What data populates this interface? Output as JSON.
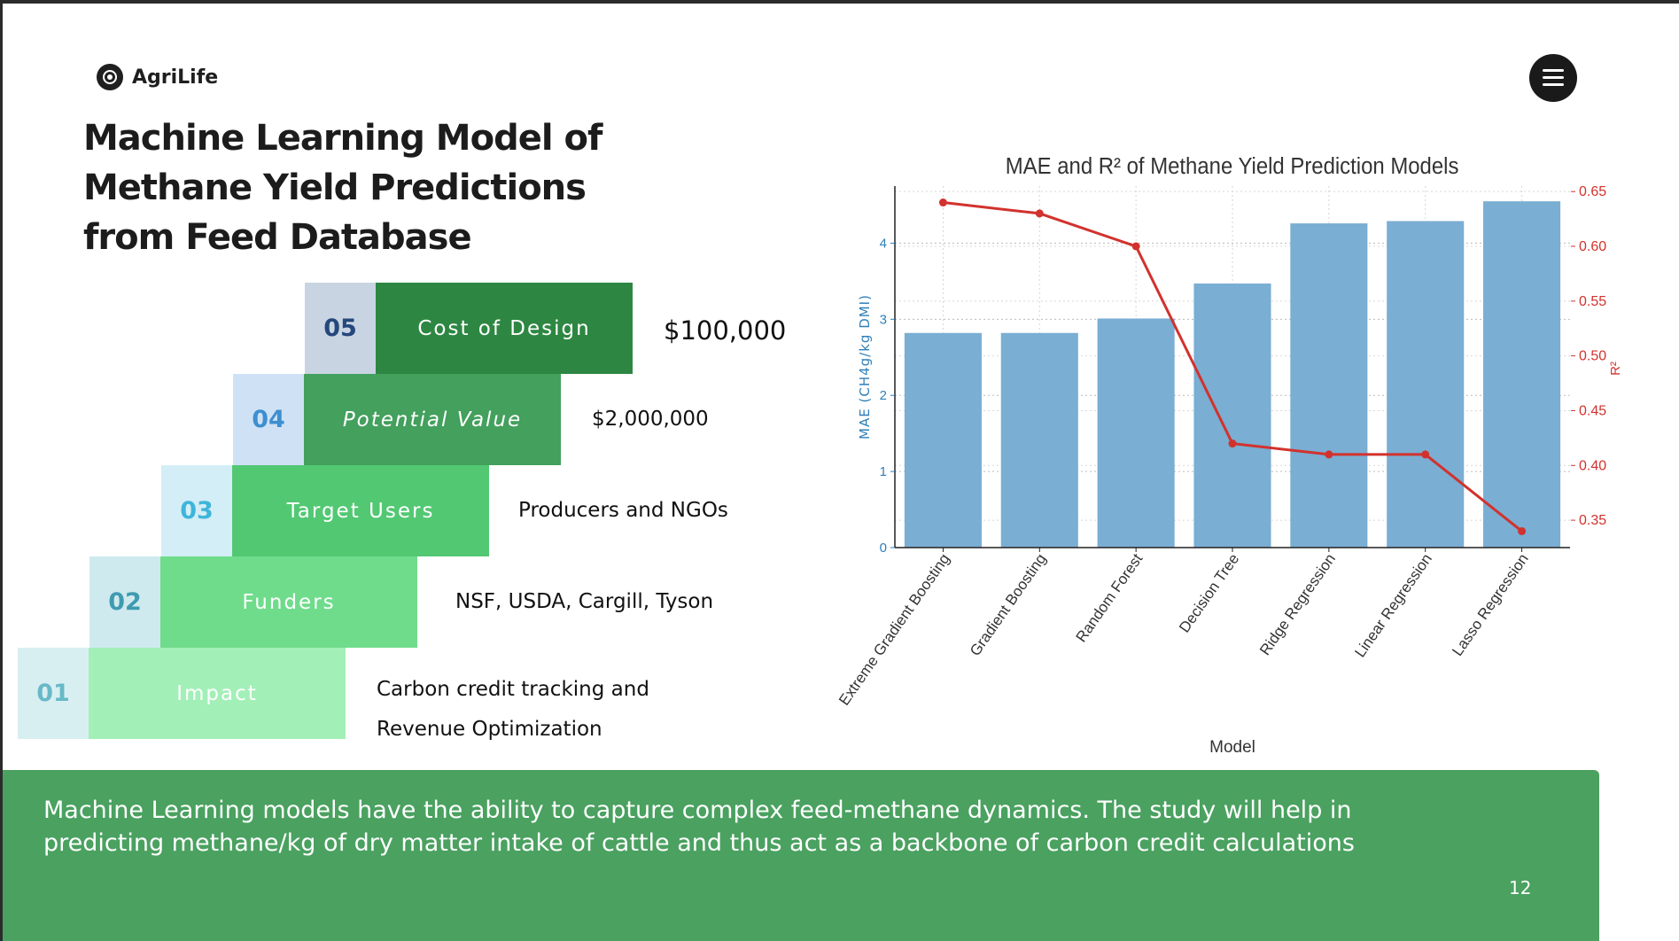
{
  "brand": {
    "name": "AgriLife"
  },
  "title": "Machine Learning Model of Methane Yield Predictions from Feed Database",
  "stairs": [
    {
      "num": "01",
      "label": "Impact",
      "value_lines": [
        "Carbon credit tracking and",
        "Revenue Optimization"
      ],
      "num_bg": "#d8eff2",
      "num_color": "#68b9c8",
      "label_bg": "#a3efb8",
      "italic": false
    },
    {
      "num": "02",
      "label": "Funders",
      "value_lines": [
        "NSF, USDA, Cargill, Tyson"
      ],
      "num_bg": "#cfeaef",
      "num_color": "#3f9bb0",
      "label_bg": "#6fdc8b",
      "italic": false
    },
    {
      "num": "03",
      "label": "Target Users",
      "value_lines": [
        "Producers and NGOs"
      ],
      "num_bg": "#d3eef6",
      "num_color": "#3eb5da",
      "label_bg": "#52c873",
      "italic": false
    },
    {
      "num": "04",
      "label": "Potential Value",
      "value_lines": [
        "$2,000,000"
      ],
      "num_bg": "#cfe2f5",
      "num_color": "#3e8fd0",
      "label_bg": "#43a05d",
      "italic": true
    },
    {
      "num": "05",
      "label": "Cost of Design",
      "value_lines": [
        "$100,000"
      ],
      "num_bg": "#c9d4e2",
      "num_color": "#24477c",
      "label_bg": "#2d8742",
      "italic": false
    }
  ],
  "chart_data": {
    "type": "bar",
    "title": "MAE and R² of Methane Yield Prediction Models",
    "xlabel": "Model",
    "ylabel": "MAE (CH4g/kg DMI)",
    "y2label": "R²",
    "categories": [
      "Extreme Gradient Boosting",
      "Gradient Boosting",
      "Random Forest",
      "Decision Tree",
      "Ridge Regression",
      "Linear Regression",
      "Lasso Regression"
    ],
    "series": [
      {
        "name": "MAE",
        "type": "bar",
        "axis": "left",
        "color": "#7aaed3",
        "values": [
          2.82,
          2.82,
          3.01,
          3.47,
          4.26,
          4.29,
          4.55
        ]
      },
      {
        "name": "R²",
        "type": "line",
        "axis": "right",
        "color": "#d2322d",
        "values": [
          0.64,
          0.63,
          0.6,
          0.42,
          0.41,
          0.41,
          0.34
        ]
      }
    ],
    "ylim": [
      0,
      4.75
    ],
    "yticks": [
      0,
      1,
      2,
      3,
      4
    ],
    "y2lim": [
      0.325,
      0.655
    ],
    "y2ticks": [
      0.35,
      0.4,
      0.45,
      0.5,
      0.55,
      0.6,
      0.65
    ],
    "y2ticklabels": [
      "0.35",
      "0.40",
      "0.45",
      "0.50",
      "0.55",
      "0.60",
      "0.65"
    ],
    "grid": true,
    "left_axis_color": "#2f7fb8",
    "right_axis_color": "#d2322d"
  },
  "footer": {
    "text": "Machine Learning models have the ability to capture complex feed-methane dynamics. The study will help in predicting methane/kg of dry matter intake of cattle and thus act as a backbone of carbon credit calculations",
    "page_number": "12"
  }
}
